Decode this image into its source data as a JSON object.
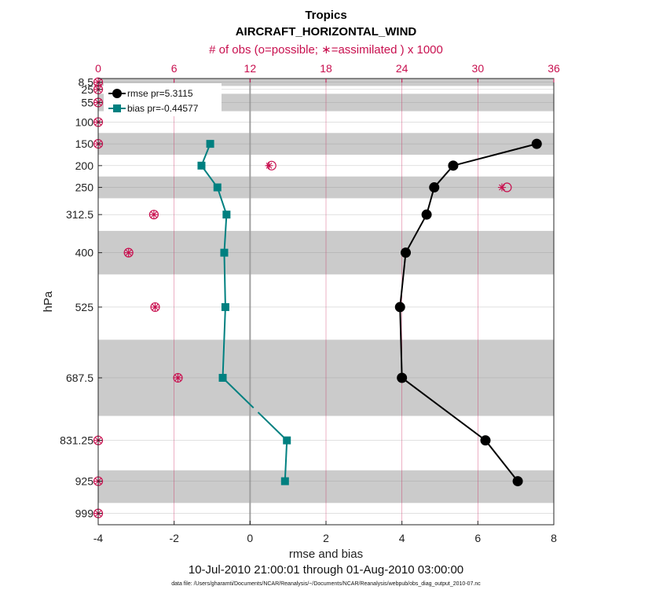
{
  "chart_data": {
    "type": "line",
    "title": "Tropics",
    "subtitle": "AIRCRAFT_HORIZONTAL_WIND",
    "top_axis_label": "# of obs (o=possible; ∗=assimilated ) x 1000",
    "xlabel": "rmse and bias",
    "ylabel": "hPa",
    "date_range": "10-Jul-2010 21:00:01 through 01-Aug-2010 03:00:00",
    "data_file": "data file: /Users/gharamti/Documents/NCAR/Reanalysis/~/Documents/NCAR/Reanalysis/webpub/obs_diag_output_2010-07.nc",
    "xlim": [
      -4,
      8
    ],
    "xticks": [
      -4,
      -2,
      0,
      2,
      4,
      6,
      8
    ],
    "top_xlim": [
      0,
      36
    ],
    "top_xticks": [
      0,
      6,
      12,
      18,
      24,
      30,
      36
    ],
    "ylim": [
      1025,
      0
    ],
    "levels": [
      8.5,
      25,
      55,
      100,
      150,
      200,
      250,
      312.5,
      400,
      525,
      687.5,
      831.25,
      925,
      999
    ],
    "level_labels": [
      "8.5",
      "25",
      "55",
      "100",
      "150",
      "200",
      "250",
      "312.5",
      "400",
      "525",
      "687.5",
      "831.25",
      "925",
      "999"
    ],
    "layer_bands": [
      [
        0,
        17
      ],
      [
        35,
        75
      ],
      [
        125,
        175
      ],
      [
        225,
        275
      ],
      [
        350,
        450
      ],
      [
        600,
        775
      ],
      [
        900,
        975
      ]
    ],
    "series": [
      {
        "name": "rmse pr=5.3115",
        "color": "#000000",
        "marker": "circle",
        "levels": [
          150,
          200,
          250,
          312.5,
          400,
          525,
          687.5,
          831.25,
          925
        ],
        "values": [
          7.55,
          5.35,
          4.85,
          4.65,
          4.1,
          3.95,
          4.0,
          6.2,
          7.05
        ]
      },
      {
        "name": "bias pr=-0.44577",
        "color": "#008080",
        "marker": "square",
        "levels": [
          150,
          200,
          250,
          312.5,
          400,
          525,
          687.5,
          831.25,
          925
        ],
        "values": [
          -1.05,
          -1.28,
          -0.86,
          -0.62,
          -0.68,
          -0.65,
          -0.72,
          0.97,
          0.92
        ],
        "gap_after_index": 6
      }
    ],
    "obs_counts_x1000": {
      "levels": [
        8.5,
        25,
        55,
        100,
        150,
        200,
        250,
        312.5,
        400,
        525,
        687.5,
        831.25,
        925,
        999
      ],
      "possible": [
        0.0,
        0.0,
        0.0,
        0.0,
        0.0,
        13.7,
        32.3,
        4.4,
        2.4,
        4.5,
        6.3,
        0.0,
        0.0,
        0.0
      ],
      "assimilated": [
        0.0,
        0.0,
        0.0,
        0.0,
        0.0,
        13.5,
        31.9,
        4.4,
        2.4,
        4.5,
        6.3,
        0.0,
        0.0,
        0.0
      ]
    },
    "colors": {
      "band": "#cbcbcb",
      "obs": "#c8104f",
      "zero_line": "#a0a0a0",
      "grid": "#c8104f"
    }
  }
}
